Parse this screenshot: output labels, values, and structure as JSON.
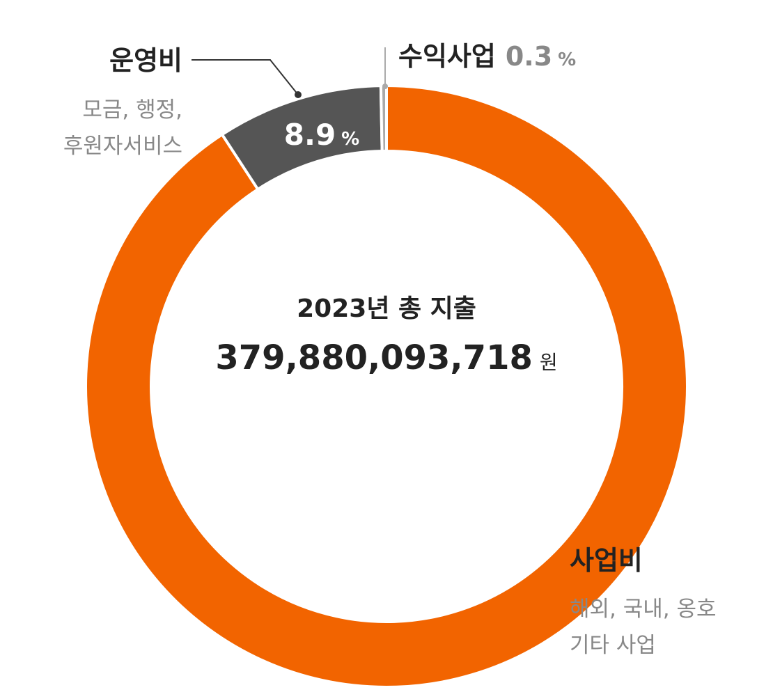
{
  "chart_data": {
    "type": "pie",
    "center_title": "2023년 총 지출",
    "center_total": "379,880,093,718",
    "center_total_unit": "원",
    "slices": [
      {
        "label": "사업비",
        "value": 90.8,
        "value_text": "90.8",
        "unit": "%",
        "color": "#F26400",
        "label_color": "#222222",
        "value_text_color": "#ffffff",
        "description_lines": [
          "해외, 국내, 옹호",
          "기타 사업"
        ]
      },
      {
        "label": "운영비",
        "value": 8.9,
        "value_text": "8.9",
        "unit": "%",
        "color": "#555555",
        "label_color": "#222222",
        "value_text_color": "#ffffff",
        "description_lines": [
          "모금, 행정,",
          "후원자서비스"
        ]
      },
      {
        "label": "수익사업",
        "value": 0.3,
        "value_text": "0.3",
        "unit": "%",
        "color": "#AAAAAA",
        "label_color": "#222222",
        "value_text_color": "#888888",
        "description_lines": []
      }
    ]
  }
}
